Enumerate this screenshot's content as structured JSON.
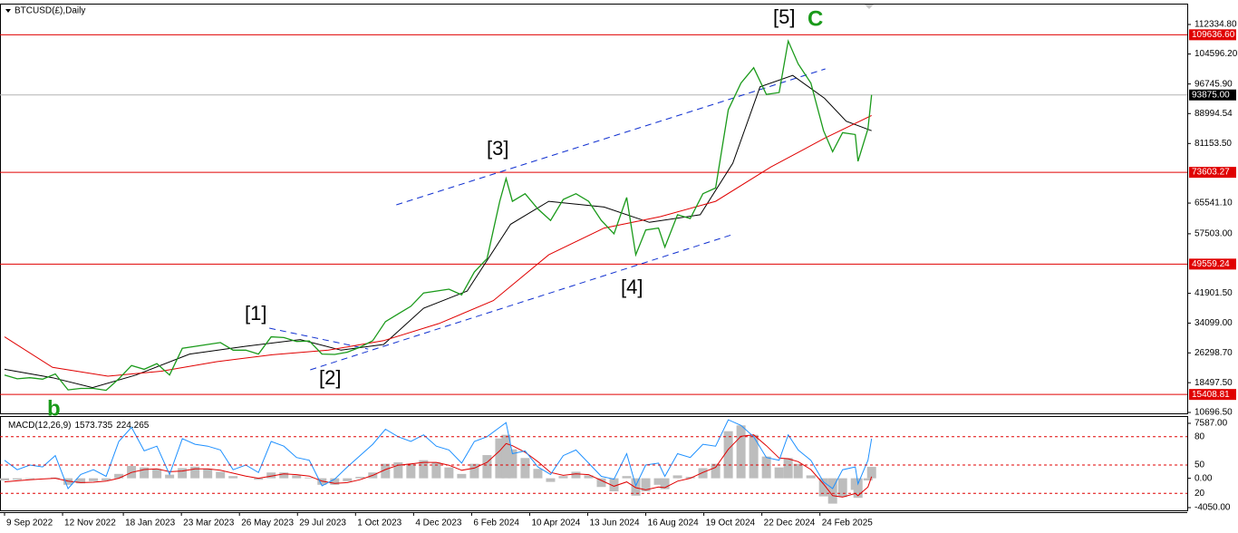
{
  "chart_data": [
    {
      "type": "line",
      "title": "BTCUSD(£),Daily",
      "color": "#1a9a1a",
      "x": [
        "2022-09-09",
        "2022-09-23",
        "2022-10-07",
        "2022-10-21",
        "2022-11-04",
        "2022-11-18",
        "2022-12-02",
        "2022-12-16",
        "2022-12-30",
        "2023-01-13",
        "2023-01-27",
        "2023-02-10",
        "2023-02-24",
        "2023-03-10",
        "2023-03-24",
        "2023-04-07",
        "2023-04-21",
        "2023-05-05",
        "2023-05-19",
        "2023-06-02",
        "2023-06-16",
        "2023-06-30",
        "2023-07-14",
        "2023-07-28",
        "2023-08-11",
        "2023-08-25",
        "2023-09-08",
        "2023-09-22",
        "2023-10-06",
        "2023-10-20",
        "2023-11-03",
        "2023-11-17",
        "2023-12-01",
        "2023-12-15",
        "2023-12-29",
        "2024-01-12",
        "2024-01-26",
        "2024-02-09",
        "2024-02-23",
        "2024-03-08",
        "2024-03-15",
        "2024-03-22",
        "2024-04-05",
        "2024-04-19",
        "2024-05-03",
        "2024-05-17",
        "2024-05-31",
        "2024-06-14",
        "2024-06-28",
        "2024-07-12",
        "2024-07-26",
        "2024-08-05",
        "2024-08-16",
        "2024-08-30",
        "2024-09-06",
        "2024-09-20",
        "2024-10-04",
        "2024-10-18",
        "2024-11-01",
        "2024-11-15",
        "2024-11-29",
        "2024-12-13",
        "2024-12-27",
        "2025-01-10",
        "2025-01-20",
        "2025-01-31",
        "2025-02-14",
        "2025-02-28",
        "2025-03-10",
        "2025-03-21",
        "2025-04-04",
        "2025-04-07",
        "2025-04-18",
        "2025-04-22"
      ],
      "values": [
        20500,
        19500,
        19800,
        19400,
        20800,
        16600,
        17000,
        17000,
        16500,
        19500,
        23000,
        22000,
        23500,
        20500,
        27500,
        28000,
        28500,
        29000,
        27000,
        27000,
        26000,
        30500,
        30300,
        29300,
        29400,
        26000,
        25900,
        26500,
        27800,
        29500,
        34500,
        36500,
        38500,
        42000,
        42500,
        43000,
        41500,
        47500,
        51000,
        66000,
        72000,
        66000,
        68000,
        64000,
        61000,
        66500,
        68000,
        66000,
        61000,
        57500,
        67000,
        52000,
        58500,
        59000,
        54000,
        62500,
        61500,
        68000,
        69500,
        90000,
        97000,
        101000,
        94000,
        94500,
        108000,
        102000,
        97000,
        84500,
        79000,
        84000,
        83500,
        76500,
        85000,
        93875
      ],
      "ylim": [
        10459,
        117797
      ],
      "yticks": [
        {
          "value": 112334.8,
          "label": "112334.80"
        },
        {
          "value": 104596.2,
          "label": "104596.20"
        },
        {
          "value": 96745.9,
          "label": "96745.90"
        },
        88994.54,
        {
          "value": 81153.5,
          "label": "81153.50"
        },
        {
          "value": 65541.1,
          "label": "65541.10"
        },
        {
          "value": 57503,
          "label": "57503.00"
        },
        {
          "value": 41901.5,
          "label": "41901.50"
        },
        {
          "value": 34099,
          "label": "34099.00"
        },
        {
          "value": 26298.7,
          "label": "26298.70"
        },
        {
          "value": 18497.5,
          "label": "18497.50"
        },
        {
          "value": 10696.5,
          "label": "10696.50"
        }
      ],
      "xlim": [
        "2022-09-04",
        "2026-04-05"
      ],
      "xticks": [
        {
          "value": "2022-09-09",
          "label": "9 Sep 2022"
        },
        {
          "value": "2022-11-12",
          "label": "12 Nov 2022"
        },
        {
          "value": "2023-01-18",
          "label": "18 Jan 2023"
        },
        {
          "value": "2023-03-23",
          "label": "23 Mar 2023"
        },
        {
          "value": "2023-05-26",
          "label": "26 May 2023"
        },
        {
          "value": "2023-07-29",
          "label": "29 Jul 2023"
        },
        {
          "value": "2023-10-01",
          "label": "1 Oct 2023"
        },
        {
          "value": "2023-12-04",
          "label": "4 Dec 2023"
        },
        {
          "value": "2024-02-06",
          "label": "6 Feb 2024"
        },
        {
          "value": "2024-04-10",
          "label": "10 Apr 2024"
        },
        {
          "value": "2024-06-13",
          "label": "13 Jun 2024"
        },
        {
          "value": "2024-08-16",
          "label": "16 Aug 2024"
        },
        {
          "value": "2024-10-19",
          "label": "19 Oct 2024"
        },
        {
          "value": "2024-12-22",
          "label": "22 Dec 2024"
        },
        {
          "value": "2025-02-24",
          "label": "24 Feb 2025"
        }
      ],
      "levels_color": "#e00000",
      "levels": [
        {
          "value": 109636.6,
          "label": "109636.60"
        },
        {
          "value": 73603.27,
          "label": "73603.27"
        },
        {
          "value": 49559.24,
          "label": "49559.24"
        },
        {
          "value": 15408.81,
          "label": "15408.81"
        }
      ],
      "current_price": {
        "value": 93875,
        "label": "93875.00"
      },
      "moving_averages": [
        {
          "color": "#000000",
          "x": [
            "2022-09-09",
            "2022-11-01",
            "2022-12-15",
            "2023-02-01",
            "2023-04-01",
            "2023-06-01",
            "2023-08-01",
            "2023-09-15",
            "2023-11-01",
            "2023-12-15",
            "2024-02-01",
            "2024-03-20",
            "2024-05-01",
            "2024-07-01",
            "2024-08-20",
            "2024-10-15",
            "2024-11-20",
            "2024-12-20",
            "2025-01-25",
            "2025-03-01",
            "2025-03-25",
            "2025-04-22"
          ],
          "values": [
            22000,
            19800,
            17200,
            20500,
            26000,
            28000,
            29800,
            27000,
            28500,
            38000,
            42500,
            60000,
            66000,
            64500,
            60500,
            62500,
            76000,
            96000,
            99000,
            93000,
            87000,
            84500
          ]
        },
        {
          "color": "#e00000",
          "x": [
            "2022-09-09",
            "2022-11-01",
            "2023-01-01",
            "2023-03-01",
            "2023-05-01",
            "2023-07-01",
            "2023-09-01",
            "2023-11-01",
            "2024-01-01",
            "2024-03-01",
            "2024-05-01",
            "2024-07-01",
            "2024-09-01",
            "2024-11-01",
            "2025-01-01",
            "2025-03-01",
            "2025-04-22"
          ],
          "values": [
            30500,
            22500,
            20200,
            21500,
            24000,
            25800,
            27000,
            29500,
            34000,
            40000,
            52000,
            59000,
            62000,
            66000,
            75000,
            82500,
            88500
          ]
        }
      ],
      "trendline_color": "#1030d0",
      "trendlines": [
        {
          "x": [
            "2023-06-28",
            "2023-10-15"
          ],
          "values": [
            32770,
            27300
          ]
        },
        {
          "x": [
            "2023-11-15",
            "2025-03-02"
          ],
          "values": [
            65070,
            100700
          ]
        },
        {
          "x": [
            "2023-08-12",
            "2024-11-22"
          ],
          "values": [
            21850,
            57470
          ]
        }
      ],
      "annotations": [
        {
          "text": "[1]",
          "color": "#000000"
        },
        {
          "text": "[2]",
          "color": "#000000"
        },
        {
          "text": "[3]",
          "color": "#000000"
        },
        {
          "text": "[4]",
          "color": "#000000"
        },
        {
          "text": "[5]",
          "color": "#000000"
        },
        {
          "text": "C",
          "color": "#1a9a1a"
        },
        {
          "text": "b",
          "color": "#1a9a1a"
        }
      ]
    },
    {
      "type": "macd",
      "title": "MACD(12,26,9)",
      "main": 1573.735,
      "signal_value": 224.265,
      "ylim": [
        -4425,
        8588
      ],
      "yticks": [
        {
          "value": 7587,
          "label": "7587.00"
        },
        {
          "value": 0,
          "label": "0.00"
        },
        {
          "value": -4050,
          "label": "-4050.00"
        }
      ],
      "y2lim": [
        0,
        100
      ],
      "y2ticks": [
        80,
        50,
        20
      ],
      "levels_color": "#e00000",
      "series": [
        {
          "color": "#bdbdbd",
          "values": [
            -300,
            -200,
            -100,
            0,
            100,
            -900,
            -700,
            -400,
            -300,
            600,
            1700,
            1500,
            1300,
            500,
            1400,
            1600,
            1300,
            900,
            300,
            0,
            -200,
            800,
            800,
            400,
            100,
            -900,
            -900,
            -400,
            200,
            800,
            2000,
            2200,
            2000,
            2500,
            2200,
            1500,
            600,
            2000,
            3200,
            5500,
            6000,
            4000,
            2800,
            1300,
            -500,
            300,
            900,
            400,
            -1200,
            -1800,
            300,
            -2400,
            -1800,
            -900,
            -1500,
            400,
            200,
            1400,
            2000,
            6500,
            7300,
            6000,
            3000,
            1500,
            2800,
            2000,
            400,
            -2500,
            -3500,
            -2600,
            -1600,
            -2700,
            -300,
            1574
          ]
        },
        {
          "color": "#e00000",
          "values": [
            -500,
            -350,
            -200,
            -100,
            0,
            -400,
            -600,
            -550,
            -400,
            0,
            800,
            1200,
            1300,
            900,
            1000,
            1300,
            1300,
            1100,
            700,
            300,
            0,
            300,
            600,
            500,
            300,
            -400,
            -700,
            -600,
            -200,
            400,
            1200,
            1800,
            2000,
            2200,
            2200,
            1800,
            1100,
            1400,
            2200,
            3800,
            4800,
            4500,
            3600,
            2300,
            800,
            400,
            600,
            500,
            -300,
            -1100,
            -500,
            -1300,
            -1600,
            -1200,
            -1300,
            -400,
            0,
            800,
            1500,
            4000,
            5800,
            6000,
            4500,
            2800,
            2700,
            2300,
            1200,
            -800,
            -2400,
            -2600,
            -2100,
            -2400,
            -1200,
            224
          ]
        },
        {
          "color": "#1e90ff",
          "axis": "y2",
          "values": [
            55,
            45,
            50,
            48,
            60,
            25,
            40,
            45,
            38,
            75,
            90,
            65,
            70,
            40,
            78,
            72,
            70,
            66,
            45,
            50,
            42,
            75,
            70,
            58,
            55,
            28,
            35,
            48,
            60,
            72,
            88,
            80,
            75,
            82,
            70,
            66,
            52,
            75,
            80,
            90,
            95,
            62,
            65,
            48,
            40,
            60,
            66,
            52,
            38,
            35,
            62,
            28,
            50,
            52,
            38,
            62,
            58,
            72,
            70,
            98,
            92,
            80,
            58,
            55,
            82,
            66,
            55,
            32,
            25,
            45,
            48,
            30,
            55,
            78
          ]
        }
      ]
    }
  ]
}
